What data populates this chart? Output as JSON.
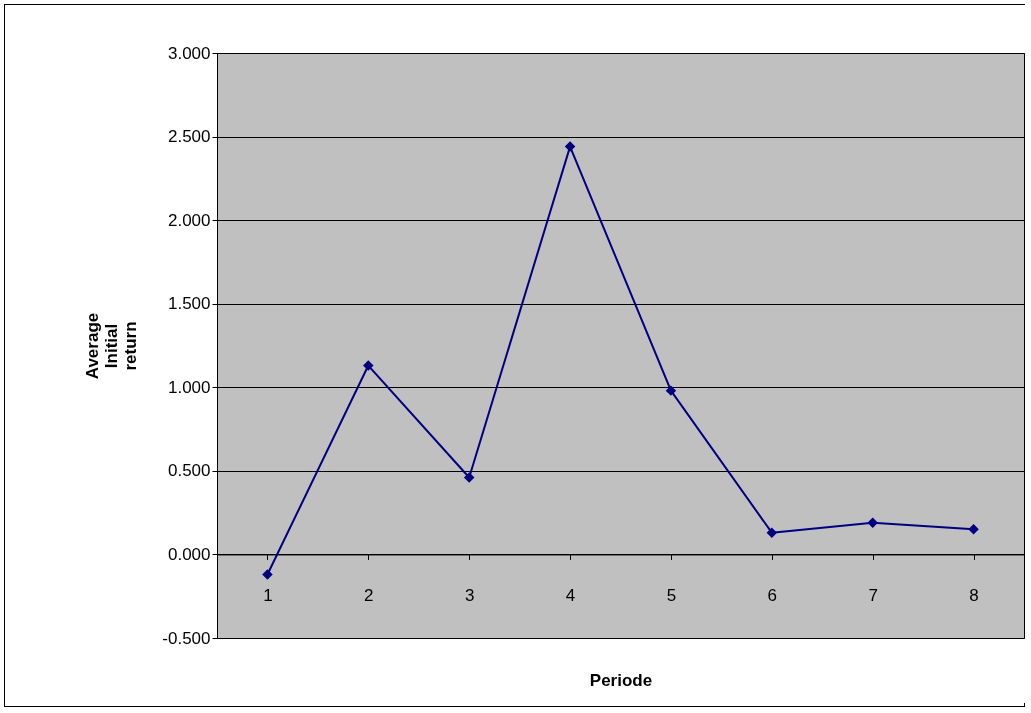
{
  "chart_data": {
    "type": "line",
    "xlabel": "Periode",
    "ylabel": "Average Initial return",
    "categories": [
      "1",
      "2",
      "3",
      "4",
      "5",
      "6",
      "7",
      "8"
    ],
    "series": [
      {
        "color": "#000080",
        "values": [
          -0.12,
          1.13,
          0.46,
          2.44,
          0.98,
          0.13,
          0.19,
          0.15
        ]
      }
    ],
    "ylim": [
      -0.5,
      3
    ],
    "yticks": [
      {
        "value": -0.5,
        "label": "-0.500"
      },
      {
        "value": 0,
        "label": "0.000"
      },
      {
        "value": 0.5,
        "label": "0.500"
      },
      {
        "value": 1,
        "label": "1.000"
      },
      {
        "value": 1.5,
        "label": "1.500"
      },
      {
        "value": 2,
        "label": "2.000"
      },
      {
        "value": 2.5,
        "label": "2.500"
      },
      {
        "value": 3,
        "label": "3.000"
      }
    ],
    "grid": "y",
    "legend": false,
    "marker": "diamond",
    "line_style": "solid"
  }
}
